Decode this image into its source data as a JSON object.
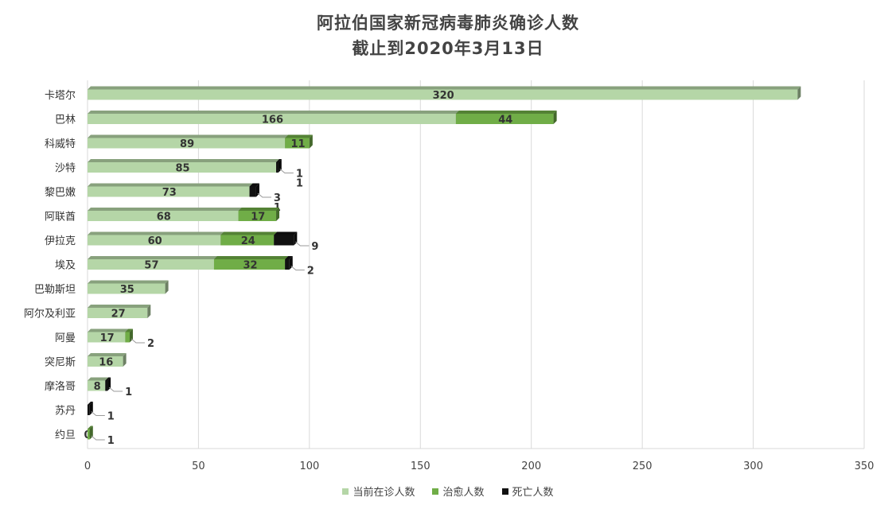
{
  "chart_data": {
    "type": "bar",
    "orientation": "horizontal",
    "stacked": true,
    "title": "阿拉伯国家新冠病毒肺炎确诊人数",
    "subtitle": "截止到2020年3月13日",
    "categories": [
      "卡塔尔",
      "巴林",
      "科威特",
      "沙特",
      "黎巴嫩",
      "阿联酋",
      "伊拉克",
      "埃及",
      "巴勒斯坦",
      "阿尔及利亚",
      "阿曼",
      "突尼斯",
      "摩洛哥",
      "苏丹",
      "约旦"
    ],
    "series": [
      {
        "name": "当前在诊人数",
        "color": "#b5d6a7",
        "values": [
          320,
          166,
          89,
          85,
          73,
          68,
          60,
          57,
          35,
          27,
          17,
          16,
          8,
          null,
          0
        ]
      },
      {
        "name": "治愈人数",
        "color": "#70ad47",
        "values": [
          null,
          44,
          11,
          null,
          null,
          17,
          24,
          32,
          null,
          null,
          2,
          null,
          null,
          null,
          1
        ]
      },
      {
        "name": "死亡人数",
        "color": "#111111",
        "values": [
          null,
          null,
          null,
          1,
          3,
          null,
          9,
          2,
          null,
          null,
          null,
          null,
          1,
          1,
          null
        ]
      }
    ],
    "second_values_lines": [
      [],
      [],
      [],
      [
        "1"
      ],
      [
        "1"
      ],
      [],
      [],
      [],
      [],
      [],
      [],
      [],
      [],
      [],
      []
    ],
    "xlim": [
      0,
      350
    ],
    "xticks": [
      0,
      50,
      100,
      150,
      200,
      250,
      300,
      350
    ],
    "grid": true,
    "legend_position": "bottom"
  }
}
